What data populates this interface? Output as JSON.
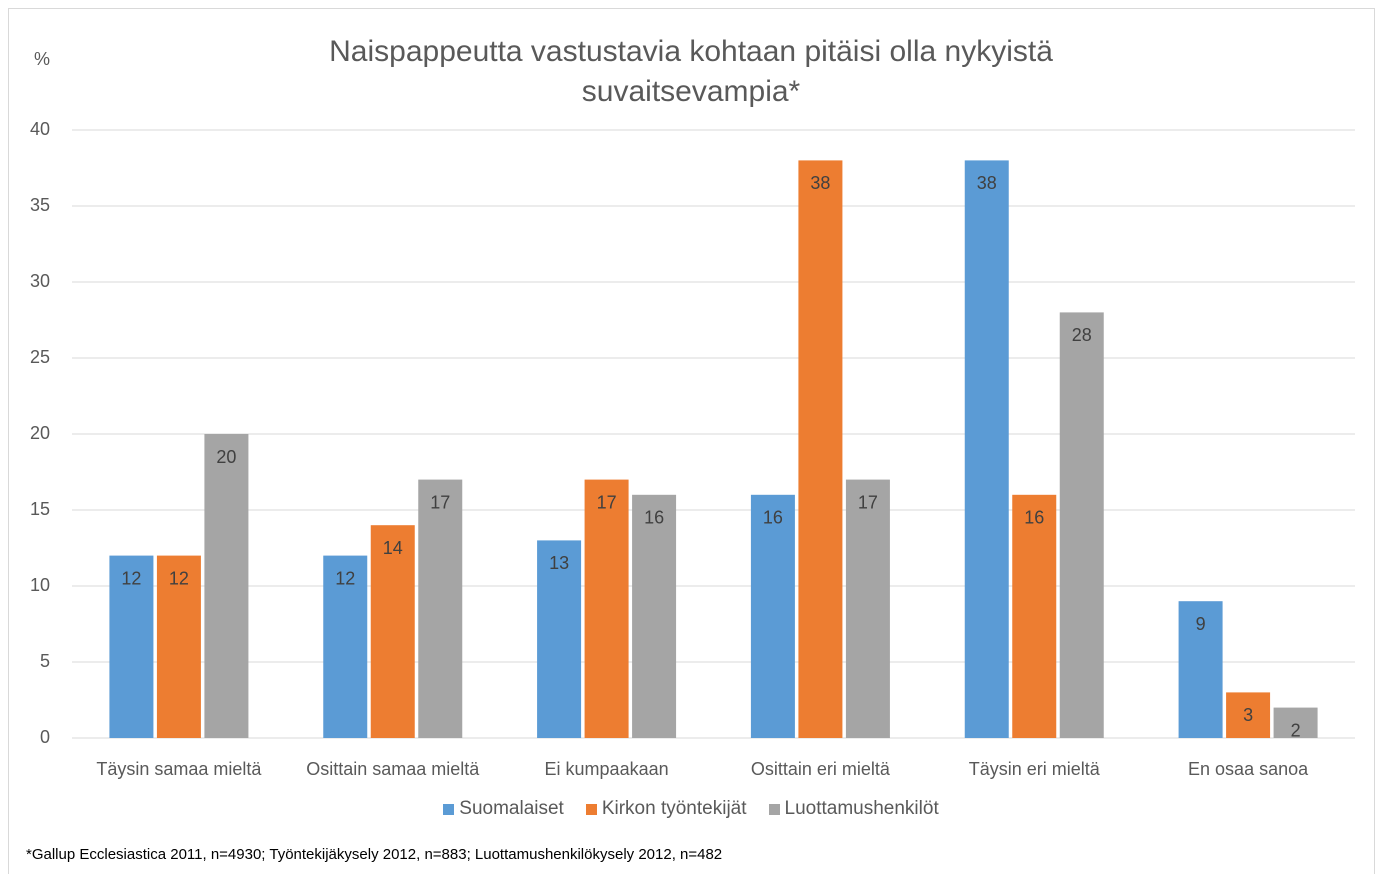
{
  "chart_data": {
    "type": "bar",
    "title": "Naispappeutta vastustavia kohtaan pitäisi olla nykyistä suvaitsevampia*",
    "y_axis_label": "%",
    "categories": [
      "Täysin samaa mieltä",
      "Osittain samaa mieltä",
      "Ei kumpaakaan",
      "Osittain eri mieltä",
      "Täysin eri mieltä",
      "En osaa sanoa"
    ],
    "series": [
      {
        "name": "Suomalaiset",
        "color": "#5b9bd5",
        "values": [
          12,
          12,
          13,
          16,
          38,
          9
        ]
      },
      {
        "name": "Kirkon työntekijät",
        "color": "#ed7d31",
        "values": [
          12,
          14,
          17,
          38,
          16,
          3
        ]
      },
      {
        "name": "Luottamushenkilöt",
        "color": "#a5a5a5",
        "values": [
          20,
          17,
          16,
          17,
          28,
          2
        ]
      }
    ],
    "ylim": [
      0,
      40
    ],
    "yticks": [
      0,
      5,
      10,
      15,
      20,
      25,
      30,
      35,
      40
    ],
    "grid": true,
    "legend": "bottom",
    "footnote": "*Gallup Ecclesiastica 2011, n=4930; Työntekijäkysely 2012, n=883; Luottamushenkilökysely 2012, n=482"
  }
}
